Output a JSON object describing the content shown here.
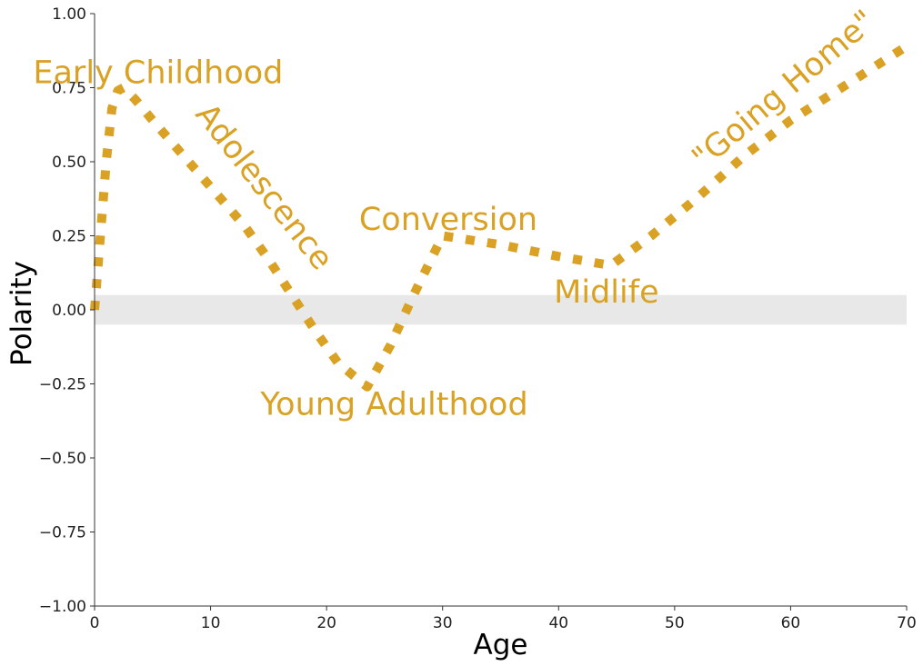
{
  "chart_data": {
    "type": "line",
    "title": "",
    "xlabel": "Age",
    "ylabel": "Polarity",
    "xlim": [
      0,
      70
    ],
    "ylim": [
      -1.0,
      1.0
    ],
    "x_ticks": [
      "0",
      "10",
      "20",
      "30",
      "40",
      "50",
      "60",
      "70"
    ],
    "y_ticks": [
      "−1.00",
      "−0.75",
      "−0.50",
      "−0.25",
      "0.00",
      "0.25",
      "0.50",
      "0.75",
      "1.00"
    ],
    "grid": false,
    "neutral_band": [
      -0.05,
      0.05
    ],
    "series": [
      {
        "x": [
          0,
          0.5,
          1,
          1.5,
          2,
          2.5,
          3.5,
          5,
          7,
          9,
          11,
          13,
          15,
          17,
          19,
          21,
          23.5,
          25.5,
          27.5,
          30,
          35,
          40,
          44.5,
          48,
          52,
          56,
          60,
          64,
          68,
          70
        ],
        "y": [
          0.0,
          0.25,
          0.5,
          0.68,
          0.74,
          0.75,
          0.71,
          0.64,
          0.55,
          0.46,
          0.37,
          0.28,
          0.17,
          0.05,
          -0.07,
          -0.18,
          -0.26,
          -0.12,
          0.05,
          0.25,
          0.22,
          0.18,
          0.15,
          0.25,
          0.38,
          0.52,
          0.64,
          0.74,
          0.84,
          0.89
        ]
      }
    ],
    "annotations": [
      {
        "text": "Early Childhood",
        "x": -5.3,
        "y": 0.765,
        "rotation": 0
      },
      {
        "text": "Adolescence",
        "x": 8.6,
        "y": 0.66,
        "rotation": 52
      },
      {
        "text": "Conversion",
        "x": 22.8,
        "y": 0.27,
        "rotation": 0
      },
      {
        "text": "Young Adulthood",
        "x": 14.3,
        "y": -0.355,
        "rotation": 0
      },
      {
        "text": "Midlife",
        "x": 39.6,
        "y": 0.025,
        "rotation": 0
      },
      {
        "text": "\"Going Home\"",
        "x": 52.5,
        "y": 0.47,
        "rotation": -40
      }
    ]
  },
  "colors": {
    "line": "#daa224",
    "annotation": "#daa224",
    "band": "#e8e8e8",
    "axis": "#333333"
  }
}
